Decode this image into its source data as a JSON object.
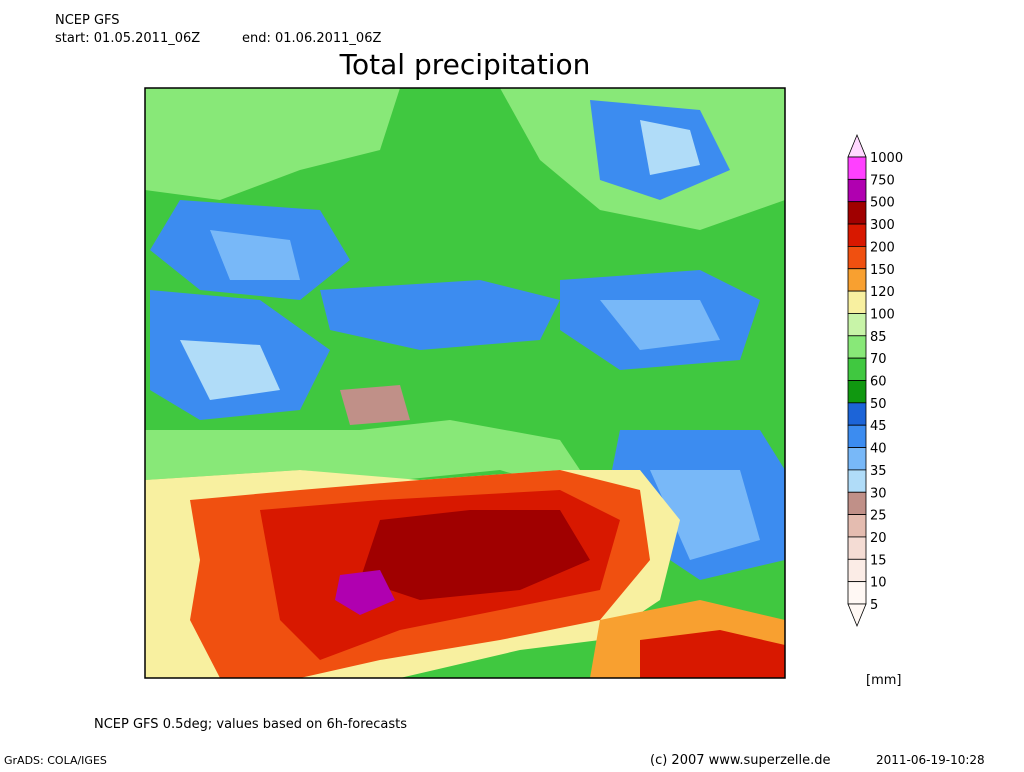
{
  "header": {
    "model": "NCEP GFS",
    "start": "start: 01.05.2011_06Z",
    "end": "end: 01.06.2011_06Z",
    "title": "Total precipitation"
  },
  "legend": {
    "unit": "[mm]",
    "levels": [
      {
        "label": "1000",
        "color": "#ffd8ff"
      },
      {
        "label": "750",
        "color": "#ff40ff"
      },
      {
        "label": "500",
        "color": "#b000b0"
      },
      {
        "label": "300",
        "color": "#a00000"
      },
      {
        "label": "200",
        "color": "#d81800"
      },
      {
        "label": "150",
        "color": "#f05010"
      },
      {
        "label": "120",
        "color": "#f8a030"
      },
      {
        "label": "100",
        "color": "#f8f0a0"
      },
      {
        "label": "85",
        "color": "#c8f4a8"
      },
      {
        "label": "70",
        "color": "#88e878"
      },
      {
        "label": "60",
        "color": "#40c840"
      },
      {
        "label": "50",
        "color": "#109810"
      },
      {
        "label": "45",
        "color": "#1c64d8"
      },
      {
        "label": "40",
        "color": "#3c8cf0"
      },
      {
        "label": "35",
        "color": "#78b8f8"
      },
      {
        "label": "30",
        "color": "#b0dcf8"
      },
      {
        "label": "25",
        "color": "#c09088"
      },
      {
        "label": "20",
        "color": "#e4bcb0"
      },
      {
        "label": "15",
        "color": "#f4dcd4"
      },
      {
        "label": "10",
        "color": "#fbece6"
      },
      {
        "label": "5",
        "color": "#fff8f4"
      }
    ]
  },
  "footer": {
    "note": "NCEP GFS 0.5deg; values based on 6h-forecasts",
    "software": "GrADS: COLA/IGES",
    "copyright": "(c) 2007 www.superzelle.de",
    "timestamp": "2011-06-19-10:28"
  }
}
